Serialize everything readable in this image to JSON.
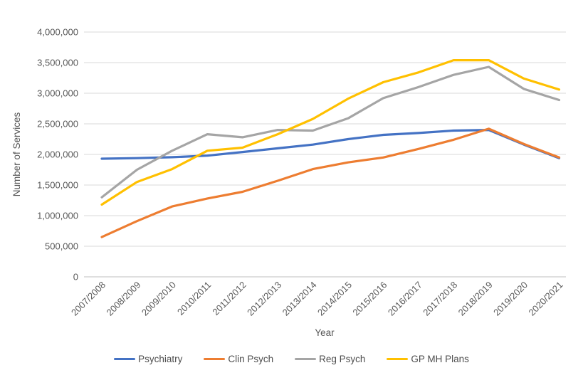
{
  "chart_data": {
    "type": "line",
    "title": "",
    "xlabel": "Year",
    "ylabel": "Number of Services",
    "categories": [
      "2007/2008",
      "2008/2009",
      "2009/2010",
      "2010/2011",
      "2011/2012",
      "2012/2013",
      "2013/2014",
      "2014/2015",
      "2015/2016",
      "2016/2017",
      "2017/2018",
      "2018/2019",
      "2019/2020",
      "2020/2021"
    ],
    "series": [
      {
        "name": "Psychiatry",
        "color": "#4472C4",
        "values": [
          1930000,
          1940000,
          1955000,
          1980000,
          2040000,
          2100000,
          2160000,
          2250000,
          2320000,
          2350000,
          2390000,
          2400000,
          2160000,
          1940000
        ]
      },
      {
        "name": "Clin Psych",
        "color": "#ED7D31",
        "values": [
          650000,
          910000,
          1150000,
          1280000,
          1390000,
          1570000,
          1760000,
          1870000,
          1950000,
          2090000,
          2240000,
          2420000,
          2170000,
          1950000
        ]
      },
      {
        "name": "Reg Psych",
        "color": "#A5A5A5",
        "values": [
          1300000,
          1750000,
          2060000,
          2330000,
          2280000,
          2400000,
          2390000,
          2590000,
          2920000,
          3100000,
          3300000,
          3430000,
          3070000,
          2890000
        ]
      },
      {
        "name": "GP MH Plans",
        "color": "#FFC000",
        "values": [
          1180000,
          1550000,
          1760000,
          2060000,
          2110000,
          2330000,
          2580000,
          2910000,
          3180000,
          3340000,
          3540000,
          3540000,
          3240000,
          3060000
        ]
      }
    ],
    "ylim": [
      0,
      4000000
    ],
    "ytick_interval": 500000,
    "ytick_labels": [
      "0",
      "500,000",
      "1,000,000",
      "1,500,000",
      "2,000,000",
      "2,500,000",
      "3,000,000",
      "3,500,000",
      "4,000,000"
    ],
    "grid": true,
    "legend_position": "bottom"
  },
  "colors": {
    "background": "#FFFFFF",
    "gridline": "#D9D9D9",
    "axis_line": "#BFBFBF",
    "tick_text": "#595959"
  }
}
